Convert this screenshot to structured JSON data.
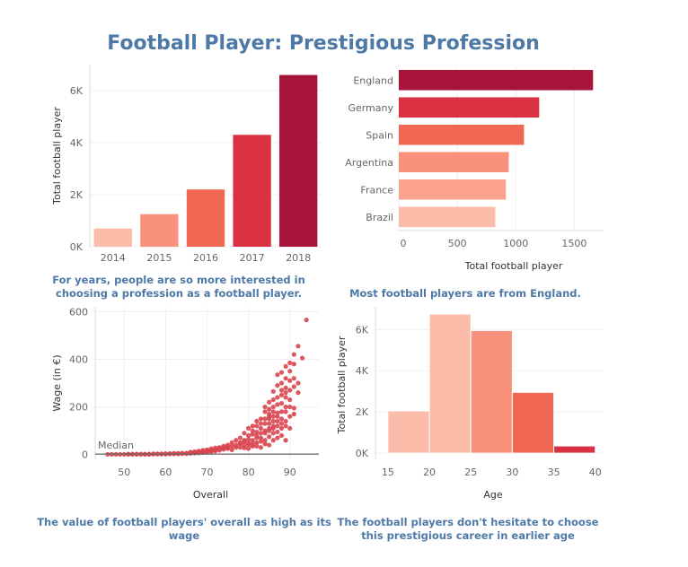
{
  "title": "Football Player: Prestigious Profession",
  "captions": {
    "years": "For  years, people are so more interested in choosing a profession as a football player.",
    "country": "Most football players are from England.",
    "wage": "The value of football players' overall as high as its wage",
    "age": "The football players don't hesitate to choose this prestigious career in earlier age"
  },
  "colors": {
    "c1": "#fbbcaa",
    "c2": "#f8927c",
    "c3": "#f06753",
    "c4": "#d93042",
    "c5": "#a8133a",
    "scatter": "#d9444f",
    "text_accent": "#4e79a7"
  },
  "chart_data": [
    {
      "id": "years",
      "type": "bar",
      "categories": [
        "2014",
        "2015",
        "2016",
        "2017",
        "2018"
      ],
      "values": [
        700,
        1250,
        2200,
        4300,
        6600
      ],
      "ylabel": "Total football player",
      "xlabel": "",
      "ylim": [
        0,
        7000
      ],
      "yticks": [
        {
          "v": 0,
          "label": "0K"
        },
        {
          "v": 2000,
          "label": "2K"
        },
        {
          "v": 4000,
          "label": "4K"
        },
        {
          "v": 6000,
          "label": "6K"
        }
      ],
      "bar_colors": [
        "#fbbcaa",
        "#f8927c",
        "#f06753",
        "#d93042",
        "#a8133a"
      ]
    },
    {
      "id": "country",
      "type": "bar",
      "orientation": "horizontal",
      "categories": [
        "England",
        "Germany",
        "Spain",
        "Argentina",
        "France",
        "Brazil"
      ],
      "values": [
        1660,
        1200,
        1070,
        940,
        915,
        825
      ],
      "xlabel": "Total football player",
      "xlim": [
        0,
        1750
      ],
      "xticks": [
        0,
        500,
        1000,
        1500
      ],
      "bar_colors": [
        "#a8133a",
        "#d93042",
        "#f06753",
        "#f8927c",
        "#fba38f",
        "#fbbcaa"
      ]
    },
    {
      "id": "wage",
      "type": "scatter",
      "xlabel": "Overall",
      "ylabel": "Wage (in €)",
      "xlim": [
        43,
        97
      ],
      "ylim": [
        -20,
        620
      ],
      "xticks": [
        50,
        60,
        70,
        80,
        90
      ],
      "yticks": [
        0,
        200,
        400,
        600
      ],
      "reference_line": {
        "label": "Median",
        "value": 2
      },
      "points": [
        [
          94,
          565
        ],
        [
          93,
          405
        ],
        [
          92,
          455
        ],
        [
          91,
          420
        ],
        [
          90,
          385
        ],
        [
          91,
          380
        ],
        [
          89,
          370
        ],
        [
          90,
          350
        ],
        [
          92,
          300
        ],
        [
          88,
          345
        ],
        [
          89,
          320
        ],
        [
          90,
          310
        ],
        [
          87,
          335
        ],
        [
          88,
          300
        ],
        [
          91,
          285
        ],
        [
          89,
          280
        ],
        [
          87,
          290
        ],
        [
          86,
          265
        ],
        [
          88,
          250
        ],
        [
          89,
          240
        ],
        [
          90,
          230
        ],
        [
          87,
          240
        ],
        [
          86,
          230
        ],
        [
          85,
          220
        ],
        [
          88,
          215
        ],
        [
          90,
          200
        ],
        [
          91,
          195
        ],
        [
          89,
          180
        ],
        [
          86,
          200
        ],
        [
          85,
          190
        ],
        [
          87,
          175
        ],
        [
          84,
          180
        ],
        [
          86,
          160
        ],
        [
          85,
          150
        ],
        [
          87,
          140
        ],
        [
          88,
          150
        ],
        [
          89,
          120
        ],
        [
          90,
          110
        ],
        [
          84,
          130
        ],
        [
          83,
          150
        ],
        [
          86,
          120
        ],
        [
          85,
          110
        ],
        [
          82,
          120
        ],
        [
          84,
          100
        ],
        [
          83,
          90
        ],
        [
          87,
          95
        ],
        [
          88,
          80
        ],
        [
          81,
          85
        ],
        [
          82,
          70
        ],
        [
          85,
          75
        ],
        [
          86,
          60
        ],
        [
          80,
          65
        ],
        [
          79,
          55
        ],
        [
          83,
          55
        ],
        [
          84,
          45
        ],
        [
          81,
          45
        ],
        [
          78,
          45
        ],
        [
          80,
          40
        ],
        [
          82,
          35
        ],
        [
          76,
          35
        ],
        [
          77,
          30
        ],
        [
          79,
          28
        ],
        [
          75,
          25
        ],
        [
          74,
          22
        ],
        [
          73,
          18
        ],
        [
          72,
          15
        ],
        [
          71,
          12
        ],
        [
          70,
          10
        ],
        [
          69,
          8
        ],
        [
          68,
          7
        ],
        [
          67,
          6
        ],
        [
          66,
          5
        ],
        [
          65,
          4
        ],
        [
          64,
          4
        ],
        [
          63,
          3
        ],
        [
          62,
          3
        ],
        [
          61,
          3
        ],
        [
          60,
          2
        ],
        [
          59,
          2
        ],
        [
          58,
          2
        ],
        [
          57,
          2
        ],
        [
          56,
          1
        ],
        [
          55,
          1
        ],
        [
          54,
          1
        ],
        [
          53,
          1
        ],
        [
          52,
          1
        ],
        [
          51,
          1
        ],
        [
          50,
          1
        ],
        [
          49,
          1
        ],
        [
          48,
          1
        ],
        [
          47,
          1
        ],
        [
          46,
          1
        ],
        [
          76,
          20
        ],
        [
          78,
          30
        ],
        [
          80,
          25
        ],
        [
          81,
          35
        ],
        [
          83,
          30
        ],
        [
          82,
          50
        ],
        [
          84,
          60
        ],
        [
          85,
          40
        ],
        [
          86,
          90
        ],
        [
          87,
          70
        ],
        [
          88,
          110
        ],
        [
          89,
          60
        ],
        [
          85,
          130
        ],
        [
          86,
          140
        ],
        [
          87,
          160
        ],
        [
          88,
          180
        ],
        [
          89,
          200
        ],
        [
          84,
          200
        ],
        [
          85,
          170
        ],
        [
          83,
          110
        ],
        [
          82,
          95
        ],
        [
          81,
          100
        ],
        [
          80,
          80
        ],
        [
          79,
          60
        ],
        [
          78,
          50
        ],
        [
          77,
          40
        ],
        [
          75,
          30
        ],
        [
          74,
          28
        ],
        [
          73,
          25
        ],
        [
          72,
          20
        ],
        [
          71,
          18
        ],
        [
          70,
          15
        ],
        [
          69,
          12
        ],
        [
          68,
          10
        ],
        [
          67,
          9
        ],
        [
          66,
          8
        ],
        [
          65,
          6
        ],
        [
          64,
          6
        ],
        [
          63,
          5
        ],
        [
          62,
          5
        ],
        [
          61,
          4
        ],
        [
          60,
          4
        ],
        [
          59,
          3
        ],
        [
          58,
          3
        ],
        [
          57,
          3
        ],
        [
          56,
          2
        ],
        [
          55,
          2
        ],
        [
          54,
          2
        ],
        [
          53,
          2
        ],
        [
          52,
          2
        ],
        [
          51,
          2
        ],
        [
          79,
          40
        ],
        [
          80,
          50
        ],
        [
          81,
          60
        ],
        [
          82,
          80
        ],
        [
          83,
          70
        ],
        [
          84,
          90
        ],
        [
          85,
          100
        ],
        [
          86,
          110
        ],
        [
          87,
          120
        ],
        [
          88,
          130
        ],
        [
          89,
          140
        ],
        [
          90,
          160
        ],
        [
          91,
          170
        ],
        [
          92,
          260
        ],
        [
          91,
          320
        ],
        [
          90,
          270
        ],
        [
          89,
          260
        ],
        [
          88,
          270
        ],
        [
          87,
          210
        ],
        [
          86,
          180
        ],
        [
          85,
          160
        ],
        [
          84,
          150
        ],
        [
          83,
          130
        ],
        [
          82,
          140
        ],
        [
          81,
          120
        ],
        [
          80,
          110
        ],
        [
          79,
          90
        ],
        [
          78,
          70
        ],
        [
          77,
          60
        ],
        [
          76,
          50
        ],
        [
          75,
          40
        ],
        [
          74,
          35
        ],
        [
          73,
          30
        ],
        [
          72,
          28
        ],
        [
          71,
          25
        ],
        [
          70,
          20
        ],
        [
          69,
          18
        ],
        [
          68,
          15
        ],
        [
          67,
          12
        ],
        [
          66,
          10
        ]
      ]
    },
    {
      "id": "age",
      "type": "bar",
      "subtype": "histogram",
      "bins": [
        [
          15,
          20
        ],
        [
          20,
          25
        ],
        [
          25,
          30
        ],
        [
          30,
          35
        ],
        [
          35,
          40
        ]
      ],
      "values": [
        2050,
        6750,
        5950,
        2950,
        350
      ],
      "xlabel": "Age",
      "ylabel": "Total football player",
      "xlim": [
        13.5,
        41
      ],
      "ylim": [
        -300,
        7100
      ],
      "xticks": [
        15,
        20,
        25,
        30,
        35,
        40
      ],
      "yticks": [
        {
          "v": 0,
          "label": "0K"
        },
        {
          "v": 2000,
          "label": "2K"
        },
        {
          "v": 4000,
          "label": "4K"
        },
        {
          "v": 6000,
          "label": "6K"
        }
      ],
      "bar_colors": [
        "#fbbcaa",
        "#fbbcaa",
        "#f8927c",
        "#f06753",
        "#d93042"
      ]
    }
  ]
}
